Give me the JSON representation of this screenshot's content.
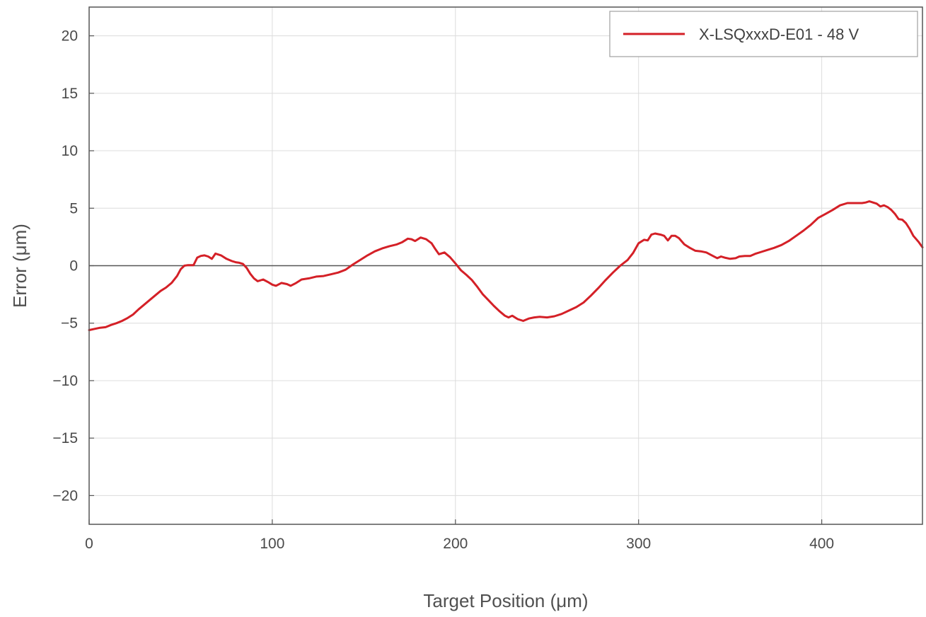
{
  "chart_data": {
    "type": "line",
    "title": "",
    "xlabel": "Target Position (μm)",
    "ylabel": "Error (μm)",
    "xlim": [
      0,
      455
    ],
    "ylim": [
      -22.5,
      22.5
    ],
    "x_ticks": [
      0,
      100,
      200,
      300,
      400
    ],
    "y_ticks": [
      -20,
      -15,
      -10,
      -5,
      0,
      5,
      10,
      15,
      20
    ],
    "x_tick_labels": [
      "0",
      "100",
      "200",
      "300",
      "400"
    ],
    "y_tick_labels": [
      "−20",
      "−15",
      "−10",
      "−5",
      "0",
      "5",
      "10",
      "15",
      "20"
    ],
    "grid": true,
    "zero_line": true,
    "legend_position": "top-right",
    "series": [
      {
        "name": "X-LSQxxxD-E01 - 48 V",
        "color": "#d42027",
        "x": [
          0,
          3,
          6,
          9,
          12,
          15,
          18,
          21,
          24,
          27,
          30,
          33,
          36,
          39,
          42,
          45,
          48,
          50,
          52,
          54,
          57,
          59,
          61,
          63,
          65,
          67,
          69,
          72,
          75,
          78,
          80,
          82,
          84,
          86,
          88,
          90,
          92,
          95,
          98,
          100,
          102,
          105,
          108,
          110,
          113,
          116,
          120,
          124,
          128,
          132,
          136,
          140,
          144,
          148,
          152,
          156,
          160,
          164,
          168,
          171,
          174,
          176,
          178,
          181,
          184,
          187,
          189,
          191,
          194,
          197,
          200,
          203,
          206,
          209,
          212,
          215,
          218,
          221,
          224,
          227,
          229,
          231,
          234,
          237,
          240,
          243,
          246,
          250,
          254,
          258,
          262,
          266,
          270,
          274,
          278,
          282,
          286,
          290,
          294,
          297,
          300,
          303,
          305,
          307,
          309,
          312,
          314,
          316,
          318,
          320,
          322,
          325,
          328,
          331,
          334,
          337,
          340,
          343,
          345,
          347,
          350,
          353,
          355,
          358,
          361,
          364,
          367,
          370,
          374,
          378,
          382,
          386,
          390,
          394,
          398,
          402,
          406,
          410,
          414,
          418,
          422,
          424,
          426,
          428,
          430,
          432,
          434,
          436,
          438,
          440,
          442,
          444,
          446,
          448,
          450,
          453,
          455
        ],
        "y": [
          -5.6,
          -5.5,
          -5.4,
          -5.35,
          -5.15,
          -5.0,
          -4.8,
          -4.55,
          -4.25,
          -3.8,
          -3.4,
          -3.0,
          -2.6,
          -2.2,
          -1.9,
          -1.5,
          -0.9,
          -0.3,
          0.0,
          0.05,
          0.05,
          0.7,
          0.85,
          0.9,
          0.8,
          0.6,
          1.05,
          0.9,
          0.6,
          0.4,
          0.3,
          0.25,
          0.15,
          -0.2,
          -0.7,
          -1.1,
          -1.35,
          -1.2,
          -1.45,
          -1.65,
          -1.75,
          -1.5,
          -1.6,
          -1.75,
          -1.5,
          -1.2,
          -1.1,
          -0.95,
          -0.9,
          -0.75,
          -0.6,
          -0.35,
          0.1,
          0.5,
          0.9,
          1.25,
          1.5,
          1.7,
          1.85,
          2.05,
          2.35,
          2.3,
          2.15,
          2.45,
          2.3,
          1.95,
          1.45,
          1.0,
          1.15,
          0.75,
          0.2,
          -0.4,
          -0.8,
          -1.25,
          -1.85,
          -2.5,
          -3.0,
          -3.5,
          -3.95,
          -4.35,
          -4.5,
          -4.35,
          -4.65,
          -4.8,
          -4.6,
          -4.5,
          -4.45,
          -4.5,
          -4.4,
          -4.2,
          -3.9,
          -3.6,
          -3.2,
          -2.6,
          -1.95,
          -1.25,
          -0.6,
          0.0,
          0.5,
          1.1,
          1.95,
          2.25,
          2.2,
          2.7,
          2.8,
          2.7,
          2.6,
          2.2,
          2.6,
          2.6,
          2.4,
          1.85,
          1.55,
          1.3,
          1.25,
          1.15,
          0.9,
          0.65,
          0.8,
          0.7,
          0.6,
          0.65,
          0.8,
          0.85,
          0.85,
          1.05,
          1.2,
          1.35,
          1.55,
          1.8,
          2.15,
          2.6,
          3.05,
          3.55,
          4.15,
          4.5,
          4.85,
          5.25,
          5.45,
          5.45,
          5.45,
          5.5,
          5.6,
          5.5,
          5.4,
          5.15,
          5.25,
          5.1,
          4.85,
          4.5,
          4.05,
          4.0,
          3.7,
          3.2,
          2.6,
          2.05,
          1.6
        ]
      }
    ]
  }
}
